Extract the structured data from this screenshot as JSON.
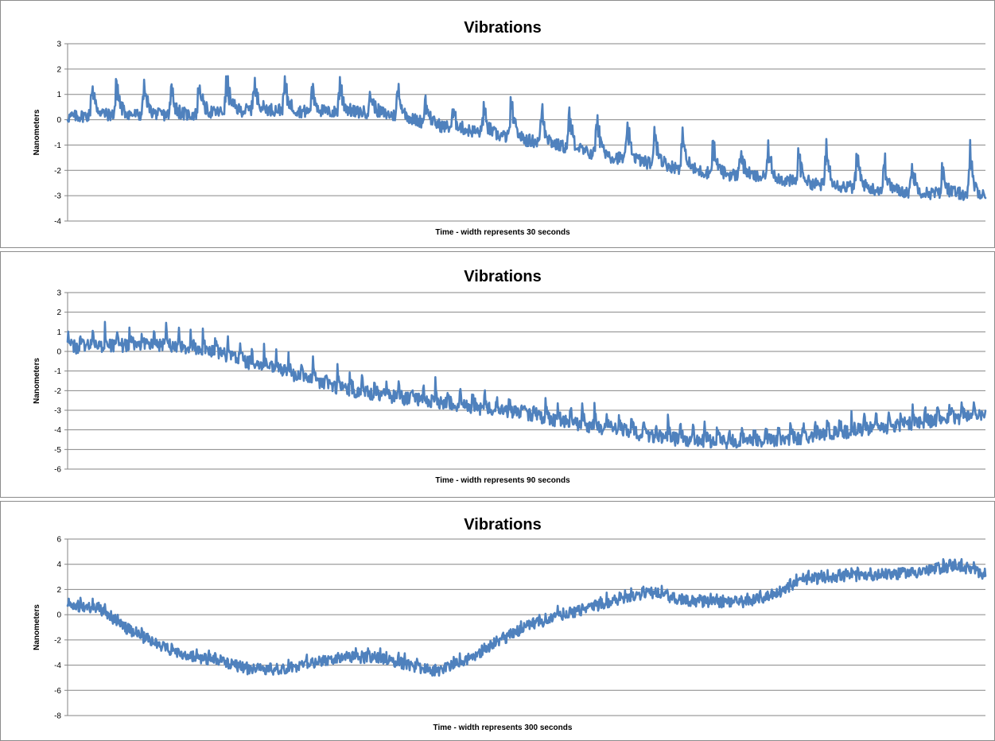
{
  "colors": {
    "series": "#4f81bd",
    "grid": "#868686",
    "border": "#8c8c8c"
  },
  "chart_data": [
    {
      "type": "line",
      "title": "Vibrations",
      "xlabel": "Time - width represents 30 seconds",
      "ylabel": "Nanometers",
      "ylim": [
        -4,
        3
      ],
      "yticks": [
        "3",
        "2",
        "1",
        "0",
        "-1",
        "-2",
        "-3",
        "-4"
      ],
      "grid": true,
      "legend": "none",
      "duration_seconds": 30,
      "series": [
        {
          "x": [
            0,
            1,
            2,
            3,
            4,
            5,
            6,
            7,
            8,
            9,
            10,
            11,
            12,
            13,
            14,
            15,
            16,
            17,
            18,
            19,
            20,
            21,
            22,
            23,
            24,
            25,
            26,
            27,
            28,
            29,
            30
          ],
          "values": [
            0.1,
            0.2,
            0.2,
            0.2,
            0.2,
            0.3,
            0.4,
            0.4,
            0.3,
            0.3,
            0.3,
            0.1,
            -0.2,
            -0.4,
            -0.6,
            -0.8,
            -1.0,
            -1.3,
            -1.5,
            -1.7,
            -1.9,
            -2.1,
            -2.2,
            -2.3,
            -2.5,
            -2.6,
            -2.7,
            -2.8,
            -2.9,
            -2.9,
            -3.0
          ],
          "spikes": [
            {
              "x": 0.8,
              "peak": 1.7
            },
            {
              "x": 1.6,
              "peak": 1.8
            },
            {
              "x": 2.5,
              "peak": 1.7
            },
            {
              "x": 3.4,
              "peak": 1.6
            },
            {
              "x": 4.3,
              "peak": 1.8
            },
            {
              "x": 5.2,
              "peak": 2.0
            },
            {
              "x": 6.1,
              "peak": 1.8
            },
            {
              "x": 7.1,
              "peak": 1.7
            },
            {
              "x": 8.0,
              "peak": 1.6
            },
            {
              "x": 8.9,
              "peak": 1.8
            },
            {
              "x": 9.9,
              "peak": 1.2
            },
            {
              "x": 10.8,
              "peak": 1.6
            },
            {
              "x": 11.7,
              "peak": 1.1
            },
            {
              "x": 12.6,
              "peak": 0.5
            },
            {
              "x": 13.6,
              "peak": 0.7
            },
            {
              "x": 14.5,
              "peak": 1.1
            },
            {
              "x": 15.5,
              "peak": 0.9
            },
            {
              "x": 16.4,
              "peak": 0.5
            },
            {
              "x": 17.3,
              "peak": 0.6
            },
            {
              "x": 18.3,
              "peak": 0.1
            },
            {
              "x": 19.2,
              "peak": 0.0
            },
            {
              "x": 20.1,
              "peak": -0.2
            },
            {
              "x": 21.1,
              "peak": -0.6
            },
            {
              "x": 22.0,
              "peak": -0.9
            },
            {
              "x": 22.9,
              "peak": -0.8
            },
            {
              "x": 23.9,
              "peak": -0.9
            },
            {
              "x": 24.8,
              "peak": -0.6
            },
            {
              "x": 25.8,
              "peak": -1.0
            },
            {
              "x": 26.7,
              "peak": -1.3
            },
            {
              "x": 27.6,
              "peak": -1.6
            },
            {
              "x": 28.6,
              "peak": -1.7
            },
            {
              "x": 29.5,
              "peak": -1.0
            }
          ]
        }
      ]
    },
    {
      "type": "line",
      "title": "Vibrations",
      "xlabel": "Time - width represents 90 seconds",
      "ylabel": "Nanometers",
      "ylim": [
        -6,
        3
      ],
      "yticks": [
        "3",
        "2",
        "1",
        "0",
        "-1",
        "-2",
        "-3",
        "-4",
        "-5",
        "-6"
      ],
      "grid": true,
      "legend": "none",
      "duration_seconds": 90,
      "series": [
        {
          "x": [
            0,
            3,
            6,
            9,
            12,
            15,
            18,
            21,
            24,
            27,
            30,
            33,
            36,
            39,
            42,
            45,
            48,
            51,
            54,
            57,
            60,
            63,
            66,
            69,
            72,
            75,
            78,
            81,
            84,
            87,
            90
          ],
          "values": [
            0.2,
            0.3,
            0.3,
            0.3,
            0.2,
            -0.1,
            -0.6,
            -1.0,
            -1.5,
            -1.9,
            -2.2,
            -2.4,
            -2.6,
            -2.8,
            -3.0,
            -3.2,
            -3.5,
            -3.8,
            -4.0,
            -4.3,
            -4.5,
            -4.6,
            -4.6,
            -4.6,
            -4.4,
            -4.2,
            -4.0,
            -3.8,
            -3.6,
            -3.4,
            -3.2
          ],
          "spike_period": 1.2,
          "spike_height": 1.1,
          "noise": 0.35
        }
      ]
    },
    {
      "type": "line",
      "title": "Vibrations",
      "xlabel": "Time - width represents 300 seconds",
      "ylabel": "Nanometers",
      "ylim": [
        -8,
        6
      ],
      "yticks": [
        "6",
        "4",
        "2",
        "0",
        "-2",
        "-4",
        "-6",
        "-8"
      ],
      "grid": true,
      "legend": "none",
      "duration_seconds": 300,
      "series": [
        {
          "x": [
            0,
            10,
            20,
            30,
            40,
            50,
            60,
            70,
            80,
            90,
            100,
            110,
            120,
            130,
            140,
            150,
            160,
            170,
            180,
            190,
            200,
            210,
            220,
            230,
            240,
            250,
            260,
            270,
            280,
            290,
            300
          ],
          "values": [
            0.8,
            0.5,
            -1.2,
            -2.5,
            -3.3,
            -3.7,
            -4.4,
            -4.3,
            -3.9,
            -3.4,
            -3.4,
            -3.9,
            -4.5,
            -3.7,
            -2.2,
            -1.0,
            -0.1,
            0.5,
            1.2,
            1.8,
            1.2,
            1.0,
            0.9,
            1.5,
            2.7,
            3.0,
            3.1,
            3.2,
            3.4,
            3.9,
            3.2
          ],
          "spike_period": 0.6,
          "spike_height": 0.7,
          "noise": 0.45
        }
      ]
    }
  ]
}
